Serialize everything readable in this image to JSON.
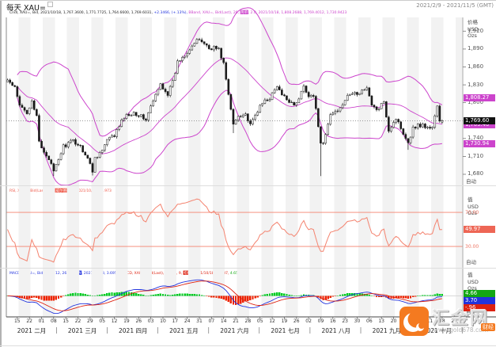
{
  "header": {
    "title": "每天 XAU=",
    "date_range": "2021/2/9 - 2021/11/5 (GMT)"
  },
  "legend_main": {
    "candle": "Cndl, XAU=, Bid, 2021/10/18, 1,767.3600, 1,771.7725, 1,764.6600, 1,769.6031, ",
    "change": "+2.3466, (+.13%), ",
    "bband_prefix": "BBand, XAU=, Bid(Last), 26, ",
    "bband_type": "简单",
    "bband_suffix": ", 2.0, 2021/10/18, 1,808.2688, 1,769.4012, 1,730.9423"
  },
  "legend_rsi": {
    "prefix": "RSI, XAU=, Bid(Last), 14, ",
    "type": "威尔德平滑",
    "suffix": ", 2021/10/18, 49.973"
  },
  "legend_macd": {
    "f_prefix": "MACDF, XAU=, Bid(Last), 12, 26, 9, ",
    "f_type": "指数",
    "f_suffix": ", 2021/10/18, 3.6957, ",
    "m_prefix": "MACD, XAU=, Bid(Last), 12, 26, 9, ",
    "m_type": "指数",
    "m_suffix": ", 2021/10/18, -.9637, ",
    "hist_value": "4.6594"
  },
  "axis_main": {
    "label": "价格",
    "currency": "USD",
    "unit": "Ozs",
    "auto": "自动",
    "tick_values": [
      1920,
      1890,
      1860,
      1830,
      1800,
      1740,
      1710,
      1680
    ],
    "tick_labels": [
      "1,920",
      "1,890",
      "1,860",
      "1,830",
      "1,800",
      "1,740",
      "1,710",
      "1,680"
    ],
    "badges": [
      {
        "label": "1,808.27",
        "value": 1808.27,
        "color": "#cc44cc",
        "nudge": 0
      },
      {
        "label": "1,769.40",
        "value": 1769.4,
        "color": "#cc44cc",
        "nudge": 5
      },
      {
        "label": "1,769.60",
        "value": 1769.6,
        "color": "#111111",
        "nudge": 0
      },
      {
        "label": "1,730.94",
        "value": 1730.94,
        "color": "#cc44cc",
        "nudge": 0
      }
    ]
  },
  "axis_rsi": {
    "label": "值",
    "currency": "USD",
    "unit": "Ozs",
    "auto": "自动",
    "line_labels": [
      {
        "label": "70.00",
        "value": 70
      },
      {
        "label": "30.00",
        "value": 30
      }
    ],
    "badge": {
      "label": "49.97",
      "value": 49.973,
      "color": "#ee6655"
    }
  },
  "axis_macd": {
    "label": "值",
    "currency": "USD",
    "unit": "Ozs",
    "auto": "自动",
    "badges": [
      {
        "label": "4.66",
        "value": 4.6594,
        "color": "#13a813"
      },
      {
        "label": "3.70",
        "value": 3.6957,
        "color": "#2233dd"
      },
      {
        "label": "-.96",
        "value": -0.9637,
        "color": "#dd2211"
      }
    ]
  },
  "xaxis": {
    "days": [
      "15",
      "22",
      "01",
      "08",
      "15",
      "22",
      "29",
      "05",
      "12",
      "19",
      "26",
      "03",
      "10",
      "17",
      "24",
      "31",
      "07",
      "14",
      "21",
      "28",
      "05",
      "12",
      "19",
      "26",
      "02",
      "09",
      "16",
      "23",
      "30",
      "06",
      "13",
      "20",
      "27",
      "04",
      "11",
      "18",
      "25"
    ],
    "months": [
      "2021 二月",
      "2021 三月",
      "2021 四月",
      "2021 五月",
      "2021 六月",
      "2021 七月",
      "2021 八月",
      "2021 九月",
      "2021 十月"
    ],
    "sep": "|"
  },
  "watermark": {
    "site": "汇金网",
    "url": "www.gold678.com",
    "tag": "财经"
  },
  "colors": {
    "candle": "#1a1a1a",
    "candle_up_fill": "#ffffff",
    "bband": "#cc44cc",
    "rsi": "#f4836f",
    "macd_line": "#2233dd",
    "signal_line": "#dd2211",
    "hist_up": "#00cc22",
    "hist_down": "#ee2200",
    "stripe": "#f2f2f2",
    "accent": "#f47a20"
  },
  "chart_data": {
    "type": "candlestick",
    "symbol": "XAU=",
    "interval": "每天",
    "title": "每天 XAU=",
    "date_range": [
      "2021/2/9",
      "2021/11/5"
    ],
    "last": {
      "date": "2021/10/18",
      "open": 1767.36,
      "high": 1771.7725,
      "low": 1764.66,
      "close": 1769.6031,
      "change": 2.3466,
      "change_pct": 0.13
    },
    "bollinger": {
      "period": 26,
      "ma_type": "简单",
      "width": 2.0,
      "upper": 1808.2688,
      "middle": 1769.4012,
      "lower": 1730.9423
    },
    "rsi": {
      "period": 14,
      "smoothing": "威尔德平滑",
      "value": 49.973,
      "upper_line": 70,
      "lower_line": 30
    },
    "macd": {
      "fast": 12,
      "slow": 26,
      "signal": 9,
      "ema_type": "指数",
      "macdf": 3.6957,
      "macd": -0.9637,
      "hist": 4.6594
    },
    "ylim": [
      1664,
      1943
    ],
    "n_days": 180,
    "axis_days": 188,
    "close_anchors": [
      [
        0,
        1838
      ],
      [
        3,
        1824
      ],
      [
        5,
        1794
      ],
      [
        8,
        1784
      ],
      [
        10,
        1805
      ],
      [
        12,
        1775
      ],
      [
        13,
        1734
      ],
      [
        14,
        1723
      ],
      [
        17,
        1707
      ],
      [
        19,
        1683
      ],
      [
        23,
        1727
      ],
      [
        27,
        1736
      ],
      [
        30,
        1727
      ],
      [
        33,
        1707
      ],
      [
        35,
        1685
      ],
      [
        36,
        1708
      ],
      [
        39,
        1720
      ],
      [
        41,
        1737
      ],
      [
        44,
        1745
      ],
      [
        48,
        1776
      ],
      [
        52,
        1784
      ],
      [
        55,
        1777
      ],
      [
        57,
        1772
      ],
      [
        59,
        1793
      ],
      [
        63,
        1831
      ],
      [
        66,
        1815
      ],
      [
        68,
        1834
      ],
      [
        70,
        1868
      ],
      [
        73,
        1881
      ],
      [
        76,
        1896
      ],
      [
        79,
        1906
      ],
      [
        81,
        1900
      ],
      [
        83,
        1891
      ],
      [
        85,
        1893
      ],
      [
        87,
        1889
      ],
      [
        88,
        1877
      ],
      [
        89,
        1866
      ],
      [
        91,
        1812
      ],
      [
        93,
        1764
      ],
      [
        95,
        1779
      ],
      [
        98,
        1781
      ],
      [
        100,
        1761
      ],
      [
        103,
        1787
      ],
      [
        106,
        1804
      ],
      [
        108,
        1808
      ],
      [
        111,
        1827
      ],
      [
        113,
        1812
      ],
      [
        116,
        1803
      ],
      [
        119,
        1797
      ],
      [
        122,
        1828
      ],
      [
        124,
        1813
      ],
      [
        126,
        1811
      ],
      [
        128,
        1763
      ],
      [
        129,
        1729
      ],
      [
        130,
        1729
      ],
      [
        133,
        1780
      ],
      [
        136,
        1788
      ],
      [
        139,
        1805
      ],
      [
        142,
        1817
      ],
      [
        145,
        1814
      ],
      [
        148,
        1828
      ],
      [
        150,
        1794
      ],
      [
        153,
        1788
      ],
      [
        155,
        1804
      ],
      [
        157,
        1754
      ],
      [
        160,
        1774
      ],
      [
        163,
        1750
      ],
      [
        165,
        1734
      ],
      [
        167,
        1757
      ],
      [
        168,
        1761
      ],
      [
        171,
        1763
      ],
      [
        173,
        1757
      ],
      [
        175,
        1760
      ],
      [
        177,
        1795
      ],
      [
        178,
        1768
      ],
      [
        179,
        1769.6
      ]
    ],
    "low_spikes": [
      [
        19,
        1677
      ],
      [
        35,
        1678
      ],
      [
        93,
        1749
      ],
      [
        129,
        1677
      ],
      [
        165,
        1721
      ]
    ]
  }
}
